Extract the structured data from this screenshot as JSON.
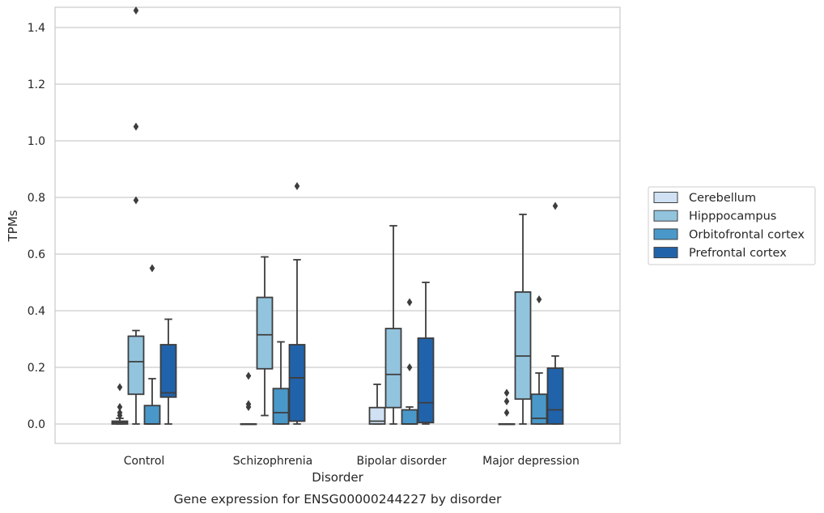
{
  "chart_data": {
    "type": "boxplot",
    "caption": "Gene expression for ENSG00000244227 by disorder",
    "xlabel": "Disorder",
    "ylabel": "TPMs",
    "ylim": [
      -0.07,
      1.54
    ],
    "yticks": [
      0.0,
      0.2,
      0.4,
      0.6,
      0.8,
      1.0,
      1.2,
      1.4
    ],
    "ytick_labels": [
      "0.0",
      "0.2",
      "0.4",
      "0.6",
      "0.8",
      "1.0",
      "1.2",
      "1.4"
    ],
    "grid": "horizontal",
    "legend_position": "right",
    "categories": [
      "Control",
      "Schizophrenia",
      "Bipolar disorder",
      "Major depression"
    ],
    "series": [
      {
        "name": "Cerebellum",
        "color": "#cfe1f2",
        "boxes": [
          {
            "min": 0.0,
            "q1": 0.0,
            "median": 0.005,
            "q3": 0.01,
            "max": 0.02,
            "outliers": [
              0.13,
              0.06,
              0.04,
              0.03
            ]
          },
          {
            "min": 0.0,
            "q1": 0.0,
            "median": 0.0,
            "q3": 0.0,
            "max": 0.0,
            "outliers": [
              0.17,
              0.07,
              0.06
            ]
          },
          {
            "min": 0.0,
            "q1": 0.0,
            "median": 0.01,
            "q3": 0.058,
            "max": 0.14,
            "outliers": []
          },
          {
            "min": 0.0,
            "q1": 0.0,
            "median": 0.0,
            "q3": 0.0,
            "max": 0.0,
            "outliers": [
              0.11,
              0.08,
              0.04
            ]
          }
        ]
      },
      {
        "name": "Hipppocampus",
        "color": "#93c4de",
        "boxes": [
          {
            "min": 0.0,
            "q1": 0.105,
            "median": 0.22,
            "q3": 0.31,
            "max": 0.33,
            "outliers": [
              1.46,
              1.05,
              0.79
            ]
          },
          {
            "min": 0.03,
            "q1": 0.195,
            "median": 0.315,
            "q3": 0.447,
            "max": 0.59,
            "outliers": []
          },
          {
            "min": 0.0,
            "q1": 0.058,
            "median": 0.175,
            "q3": 0.337,
            "max": 0.7,
            "outliers": []
          },
          {
            "min": 0.0,
            "q1": 0.088,
            "median": 0.24,
            "q3": 0.466,
            "max": 0.74,
            "outliers": []
          }
        ]
      },
      {
        "name": "Orbitofrontal cortex",
        "color": "#4a98c9",
        "boxes": [
          {
            "min": 0.0,
            "q1": 0.0,
            "median": 0.0,
            "q3": 0.065,
            "max": 0.16,
            "outliers": [
              0.55
            ]
          },
          {
            "min": 0.0,
            "q1": 0.0,
            "median": 0.04,
            "q3": 0.125,
            "max": 0.29,
            "outliers": []
          },
          {
            "min": 0.0,
            "q1": 0.0,
            "median": 0.0,
            "q3": 0.05,
            "max": 0.06,
            "outliers": [
              0.43,
              0.2
            ]
          },
          {
            "min": 0.0,
            "q1": 0.0,
            "median": 0.02,
            "q3": 0.105,
            "max": 0.18,
            "outliers": [
              0.44
            ]
          }
        ]
      },
      {
        "name": "Prefrontal cortex",
        "color": "#2163aa",
        "boxes": [
          {
            "min": 0.0,
            "q1": 0.095,
            "median": 0.11,
            "q3": 0.28,
            "max": 0.37,
            "outliers": []
          },
          {
            "min": 0.0,
            "q1": 0.01,
            "median": 0.163,
            "q3": 0.28,
            "max": 0.58,
            "outliers": [
              0.84
            ]
          },
          {
            "min": 0.0,
            "q1": 0.005,
            "median": 0.075,
            "q3": 0.303,
            "max": 0.5,
            "outliers": []
          },
          {
            "min": 0.0,
            "q1": 0.0,
            "median": 0.05,
            "q3": 0.197,
            "max": 0.24,
            "outliers": [
              0.77
            ]
          }
        ]
      }
    ]
  }
}
